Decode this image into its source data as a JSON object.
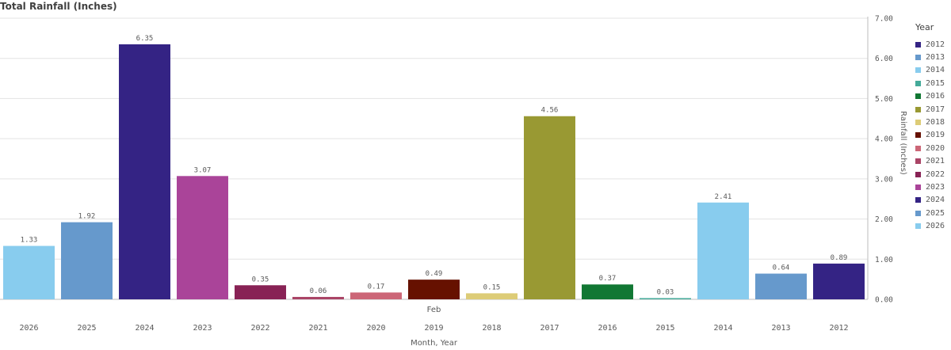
{
  "chart_data": {
    "type": "bar",
    "title": "Total Rainfall (Inches)",
    "xlabel": "Month, Year",
    "ylabel": "Rainfall (Inches)",
    "group_label": "Feb",
    "categories": [
      "2026",
      "2025",
      "2024",
      "2023",
      "2022",
      "2021",
      "2020",
      "2019",
      "2018",
      "2017",
      "2016",
      "2015",
      "2014",
      "2013",
      "2012"
    ],
    "values": [
      1.33,
      1.92,
      6.35,
      3.07,
      0.35,
      0.06,
      0.17,
      0.49,
      0.15,
      4.56,
      0.37,
      0.03,
      2.41,
      0.64,
      0.89
    ],
    "data_labels": [
      "1.33",
      "1.92",
      "6.35",
      "3.07",
      "0.35",
      "0.06",
      "0.17",
      "0.49",
      "0.15",
      "4.56",
      "0.37",
      "0.03",
      "2.41",
      "0.64",
      "0.89"
    ],
    "ylim": [
      0,
      7
    ],
    "yticks": [
      "0.00",
      "1.00",
      "2.00",
      "3.00",
      "4.00",
      "5.00",
      "6.00",
      "7.00"
    ],
    "y_axis_side": "right",
    "grid": true,
    "legend_placement": "right",
    "legend_title": "Year",
    "legend": [
      {
        "label": "2012",
        "color": "#342384"
      },
      {
        "label": "2013",
        "color": "#6699cc"
      },
      {
        "label": "2014",
        "color": "#88ccee"
      },
      {
        "label": "2015",
        "color": "#44aa99"
      },
      {
        "label": "2016",
        "color": "#117733"
      },
      {
        "label": "2017",
        "color": "#999933"
      },
      {
        "label": "2018",
        "color": "#ddcc77"
      },
      {
        "label": "2019",
        "color": "#661100"
      },
      {
        "label": "2020",
        "color": "#cc6677"
      },
      {
        "label": "2021",
        "color": "#aa4466"
      },
      {
        "label": "2022",
        "color": "#882255"
      },
      {
        "label": "2023",
        "color": "#aa4499"
      },
      {
        "label": "2024",
        "color": "#342384"
      },
      {
        "label": "2025",
        "color": "#6699cc"
      },
      {
        "label": "2026",
        "color": "#88ccee"
      }
    ],
    "bar_colors": [
      "#88ccee",
      "#6699cc",
      "#342384",
      "#aa4499",
      "#882255",
      "#aa4466",
      "#cc6677",
      "#661100",
      "#ddcc77",
      "#999933",
      "#117733",
      "#44aa99",
      "#88ccee",
      "#6699cc",
      "#342384"
    ]
  }
}
